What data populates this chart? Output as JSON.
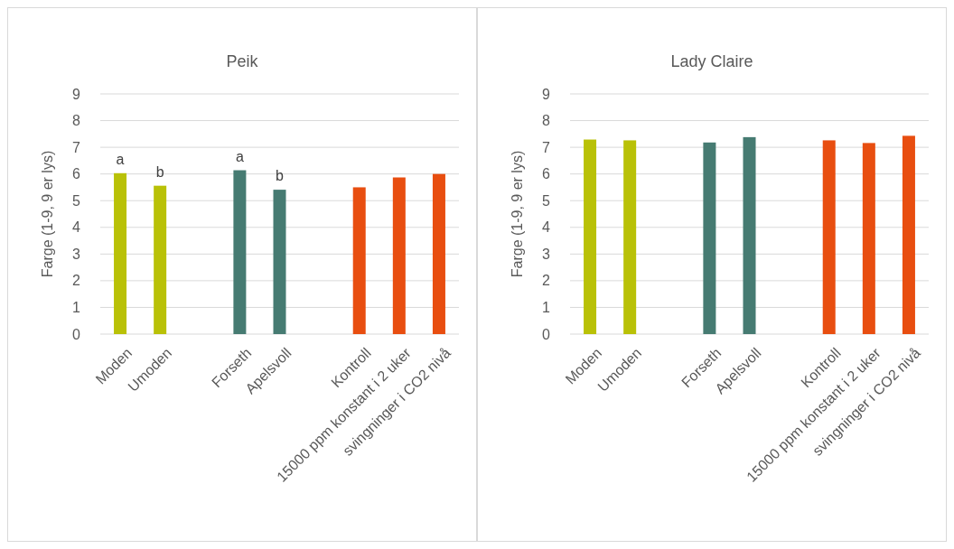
{
  "chart_data": [
    {
      "type": "bar",
      "title": "Peik",
      "ylabel": "Farge (1-9, 9 er lys)",
      "categories": [
        "Moden",
        "Umoden",
        null,
        "Forseth",
        "Apelsvoll",
        null,
        "Kontroll",
        "15000 ppm konstant i 2 uker",
        "svingninger i CO2 nivå"
      ],
      "values": [
        6.03,
        5.56,
        null,
        6.14,
        5.41,
        null,
        5.5,
        5.87,
        6.0
      ],
      "colors": [
        "#b9c107",
        "#b9c107",
        null,
        "#467b72",
        "#467b72",
        null,
        "#e84e10",
        "#e84e10",
        "#e84e10"
      ],
      "ylim": [
        0,
        9
      ],
      "yticks": [
        0,
        1,
        2,
        3,
        4,
        5,
        6,
        7,
        8,
        9
      ],
      "grid": "y",
      "annotations": [
        {
          "text": "a",
          "x": "Moden",
          "y": 6.03
        },
        {
          "text": "b",
          "x": "Umoden",
          "y": 5.56
        },
        {
          "text": "a",
          "x": "Forseth",
          "y": 6.14
        },
        {
          "text": "b",
          "x": "Apelsvoll",
          "y": 5.41
        }
      ]
    },
    {
      "type": "bar",
      "title": "Lady Claire",
      "ylabel": "Farge (1-9, 9 er lys)",
      "categories": [
        "Moden",
        "Umoden",
        null,
        "Forseth",
        "Apelsvoll",
        null,
        "Kontroll",
        "15000 ppm konstant i 2 uker",
        "svingninger i CO2 nivå"
      ],
      "values": [
        7.29,
        7.26,
        null,
        7.18,
        7.38,
        null,
        7.26,
        7.16,
        7.43
      ],
      "colors": [
        "#b9c107",
        "#b9c107",
        null,
        "#467b72",
        "#467b72",
        null,
        "#e84e10",
        "#e84e10",
        "#e84e10"
      ],
      "ylim": [
        0,
        9
      ],
      "yticks": [
        0,
        1,
        2,
        3,
        4,
        5,
        6,
        7,
        8,
        9
      ],
      "grid": "y"
    }
  ]
}
